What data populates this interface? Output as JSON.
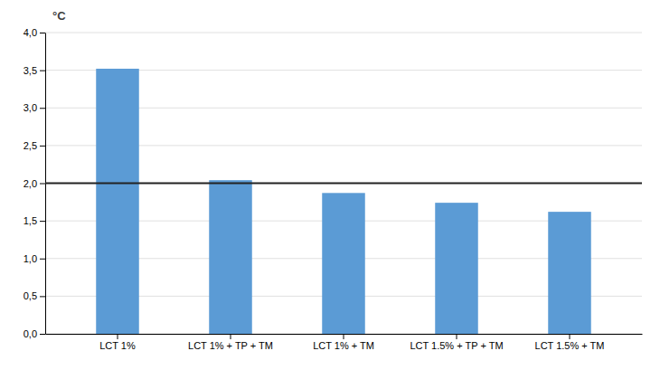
{
  "chart_data": {
    "type": "bar",
    "categories": [
      "LCT 1%",
      "LCT 1% + TP + TM",
      "LCT 1% + TM",
      "LCT 1.5% + TP + TM",
      "LCT 1.5% + TM"
    ],
    "values": [
      3.52,
      2.04,
      1.87,
      1.74,
      1.62
    ],
    "color": "#5B9BD5",
    "ylabel": "°C",
    "ylim": [
      0,
      4.0
    ],
    "yticks": [
      {
        "value": 0.0,
        "label": "0,0"
      },
      {
        "value": 0.5,
        "label": "0,5"
      },
      {
        "value": 1.0,
        "label": "1,0"
      },
      {
        "value": 1.5,
        "label": "1,5"
      },
      {
        "value": 2.0,
        "label": "2,0"
      },
      {
        "value": 2.5,
        "label": "2,5"
      },
      {
        "value": 3.0,
        "label": "3,0"
      },
      {
        "value": 3.5,
        "label": "3,5"
      },
      {
        "value": 4.0,
        "label": "4,0"
      }
    ],
    "reference_line": 2.0,
    "grid": true
  }
}
